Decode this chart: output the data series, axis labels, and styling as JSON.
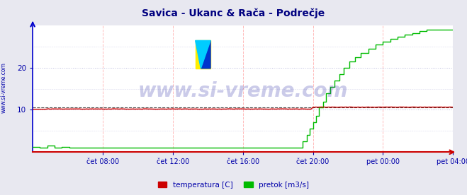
{
  "title": "Savica - Ukanc & Rača - Podrečje",
  "title_color": "#000080",
  "title_fontsize": 10,
  "bg_color": "#e8e8f0",
  "plot_bg_color": "#ffffff",
  "ylim": [
    0,
    30
  ],
  "yticks": [
    10,
    20
  ],
  "n_points": 288,
  "xtick_labels": [
    "čet 08:00",
    "čet 12:00",
    "čet 16:00",
    "čet 20:00",
    "pet 00:00",
    "pet 04:00"
  ],
  "xtick_positions": [
    48,
    96,
    144,
    192,
    240,
    288
  ],
  "grid_color_v": "#ffbbbb",
  "grid_color_h": "#bbbbdd",
  "watermark": "www.si-vreme.com",
  "watermark_color": "#3333aa",
  "watermark_alpha": 0.25,
  "watermark_fontsize": 20,
  "legend_labels": [
    "temperatura [C]",
    "pretok [m3/s]"
  ],
  "legend_colors": [
    "#cc0000",
    "#00bb00"
  ],
  "temp_color": "#cc0000",
  "flow_color": "#00bb00",
  "dashed_line_color": "#444444",
  "dashed_line_value": 10.6,
  "left_spine_color": "#0000cc",
  "bottom_spine_color": "#cc0000",
  "tick_color": "#0000aa",
  "left_label_color": "#0000aa",
  "left_label_text": "www.si-vreme.com"
}
